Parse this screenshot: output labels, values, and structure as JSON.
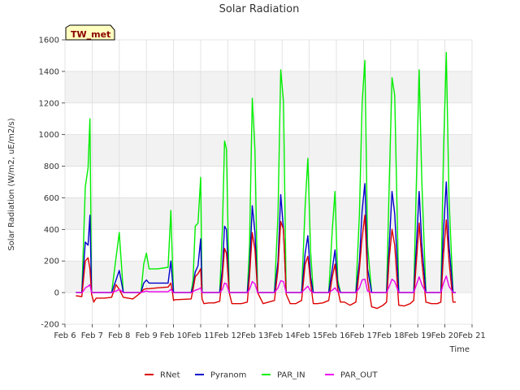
{
  "chart_data": {
    "type": "line",
    "title": "Solar Radiation",
    "xlabel": "Time",
    "ylabel": "Solar Radiation (W/m2, uE/m2/s)",
    "badge": "TW_met",
    "xlim": [
      6,
      21
    ],
    "ylim": [
      -200,
      1600
    ],
    "grid": true,
    "legend_position": "bottom",
    "x_ticks": [
      {
        "value": 6,
        "label": "Feb 6"
      },
      {
        "value": 7,
        "label": "Feb 7"
      },
      {
        "value": 8,
        "label": "Feb 8"
      },
      {
        "value": 9,
        "label": "Feb 9"
      },
      {
        "value": 10,
        "label": "Feb 10"
      },
      {
        "value": 11,
        "label": "Feb 11"
      },
      {
        "value": 12,
        "label": "Feb 12"
      },
      {
        "value": 13,
        "label": "Feb 13"
      },
      {
        "value": 14,
        "label": "Feb 14"
      },
      {
        "value": 15,
        "label": "Feb 15"
      },
      {
        "value": 16,
        "label": "Feb 16"
      },
      {
        "value": 17,
        "label": "Feb 17"
      },
      {
        "value": 18,
        "label": "Feb 18"
      },
      {
        "value": 19,
        "label": "Feb 19"
      },
      {
        "value": 20,
        "label": "Feb 20"
      },
      {
        "value": 21,
        "label": "Feb 21"
      }
    ],
    "y_ticks": [
      -200,
      0,
      200,
      400,
      600,
      800,
      1000,
      1200,
      1400,
      1600
    ],
    "x_range_of_data": [
      6.4,
      20.4
    ],
    "series": [
      {
        "name": "RNet",
        "color": "#dd0000",
        "x": [
          6.4,
          6.62,
          6.68,
          6.75,
          6.85,
          6.92,
          6.98,
          7.06,
          7.15,
          7.45,
          7.72,
          7.88,
          8.0,
          8.15,
          8.5,
          8.8,
          8.9,
          9.0,
          9.1,
          9.4,
          9.8,
          9.9,
          9.95,
          10.0,
          10.05,
          10.65,
          10.72,
          10.8,
          10.9,
          11.0,
          11.05,
          11.12,
          11.3,
          11.5,
          11.7,
          11.8,
          11.88,
          11.95,
          12.05,
          12.15,
          12.3,
          12.5,
          12.72,
          12.8,
          12.9,
          13.0,
          13.1,
          13.3,
          13.5,
          13.72,
          13.85,
          13.95,
          14.05,
          14.15,
          14.3,
          14.5,
          14.72,
          14.85,
          14.95,
          15.05,
          15.15,
          15.3,
          15.5,
          15.72,
          15.85,
          15.95,
          16.05,
          16.15,
          16.3,
          16.5,
          16.72,
          16.85,
          16.95,
          17.05,
          17.15,
          17.3,
          17.5,
          17.72,
          17.85,
          17.95,
          18.05,
          18.15,
          18.3,
          18.5,
          18.72,
          18.85,
          18.95,
          19.05,
          19.15,
          19.3,
          19.5,
          19.72,
          19.85,
          19.95,
          20.05,
          20.15,
          20.3,
          20.4
        ],
        "y": [
          -20,
          -25,
          80,
          200,
          220,
          150,
          -10,
          -60,
          -35,
          -35,
          -30,
          50,
          20,
          -30,
          -40,
          0,
          20,
          25,
          25,
          30,
          35,
          60,
          15,
          -50,
          -45,
          -40,
          20,
          100,
          120,
          150,
          -40,
          -70,
          -65,
          -65,
          -55,
          100,
          280,
          250,
          0,
          -70,
          -70,
          -70,
          -60,
          100,
          380,
          270,
          0,
          -70,
          -60,
          -50,
          150,
          450,
          400,
          -10,
          -70,
          -70,
          -50,
          180,
          230,
          60,
          -70,
          -70,
          -65,
          -50,
          100,
          180,
          20,
          -60,
          -60,
          -80,
          -60,
          150,
          350,
          490,
          80,
          -90,
          -100,
          -80,
          -60,
          220,
          400,
          300,
          -80,
          -85,
          -70,
          -50,
          200,
          440,
          200,
          -60,
          -70,
          -70,
          -60,
          250,
          460,
          200,
          -60,
          -60
        ]
      },
      {
        "name": "Pyranom",
        "color": "#0000cc",
        "x": [
          6.4,
          6.62,
          6.68,
          6.75,
          6.85,
          6.92,
          6.98,
          7.06,
          7.15,
          7.45,
          7.72,
          7.88,
          8.0,
          8.15,
          8.5,
          8.8,
          8.9,
          9.0,
          9.1,
          9.4,
          9.8,
          9.9,
          9.95,
          10.0,
          10.05,
          10.65,
          10.72,
          10.8,
          10.9,
          11.0,
          11.05,
          11.12,
          11.3,
          11.5,
          11.7,
          11.8,
          11.88,
          11.95,
          12.05,
          12.15,
          12.3,
          12.5,
          12.72,
          12.8,
          12.9,
          13.0,
          13.1,
          13.3,
          13.5,
          13.72,
          13.85,
          13.95,
          14.05,
          14.15,
          14.3,
          14.5,
          14.72,
          14.85,
          14.95,
          15.05,
          15.15,
          15.3,
          15.5,
          15.72,
          15.85,
          15.95,
          16.05,
          16.15,
          16.3,
          16.5,
          16.72,
          16.85,
          16.95,
          17.05,
          17.15,
          17.3,
          17.5,
          17.72,
          17.85,
          17.95,
          18.05,
          18.15,
          18.3,
          18.5,
          18.72,
          18.85,
          18.95,
          19.05,
          19.15,
          19.3,
          19.5,
          19.72,
          19.85,
          19.95,
          20.05,
          20.15,
          20.3,
          20.4
        ],
        "y": [
          0,
          0,
          150,
          320,
          300,
          490,
          0,
          0,
          0,
          0,
          0,
          80,
          140,
          0,
          0,
          0,
          60,
          80,
          60,
          60,
          60,
          200,
          100,
          0,
          0,
          0,
          40,
          130,
          170,
          340,
          0,
          0,
          0,
          0,
          0,
          150,
          420,
          400,
          0,
          0,
          0,
          0,
          0,
          150,
          550,
          380,
          0,
          0,
          0,
          0,
          200,
          620,
          400,
          0,
          0,
          0,
          0,
          250,
          360,
          100,
          0,
          0,
          0,
          0,
          150,
          270,
          50,
          0,
          0,
          0,
          0,
          200,
          520,
          690,
          150,
          0,
          0,
          0,
          0,
          300,
          640,
          500,
          0,
          0,
          0,
          0,
          300,
          640,
          300,
          0,
          0,
          0,
          0,
          400,
          700,
          300,
          0,
          0
        ]
      },
      {
        "name": "PAR_IN",
        "color": "#00ee00",
        "x": [
          6.4,
          6.62,
          6.68,
          6.75,
          6.85,
          6.92,
          6.98,
          7.06,
          7.15,
          7.45,
          7.72,
          7.88,
          8.0,
          8.15,
          8.5,
          8.8,
          8.9,
          9.0,
          9.1,
          9.4,
          9.8,
          9.9,
          9.95,
          10.0,
          10.05,
          10.65,
          10.72,
          10.8,
          10.9,
          11.0,
          11.05,
          11.12,
          11.3,
          11.5,
          11.7,
          11.8,
          11.88,
          11.95,
          12.05,
          12.15,
          12.3,
          12.5,
          12.72,
          12.8,
          12.9,
          13.0,
          13.1,
          13.3,
          13.5,
          13.72,
          13.85,
          13.95,
          14.05,
          14.15,
          14.3,
          14.5,
          14.72,
          14.85,
          14.95,
          15.05,
          15.15,
          15.3,
          15.5,
          15.72,
          15.85,
          15.95,
          16.05,
          16.15,
          16.3,
          16.5,
          16.72,
          16.85,
          16.95,
          17.05,
          17.15,
          17.3,
          17.5,
          17.72,
          17.85,
          17.95,
          18.05,
          18.15,
          18.3,
          18.5,
          18.72,
          18.85,
          18.95,
          19.05,
          19.15,
          19.3,
          19.5,
          19.72,
          19.85,
          19.95,
          20.05,
          20.15,
          20.3,
          20.4
        ],
        "y": [
          0,
          0,
          300,
          670,
          790,
          1100,
          0,
          0,
          0,
          0,
          0,
          220,
          380,
          0,
          0,
          0,
          180,
          250,
          150,
          150,
          160,
          520,
          250,
          0,
          0,
          0,
          80,
          420,
          440,
          730,
          0,
          0,
          0,
          0,
          0,
          400,
          960,
          910,
          0,
          0,
          0,
          0,
          0,
          300,
          1230,
          900,
          0,
          0,
          0,
          0,
          500,
          1410,
          1210,
          0,
          0,
          0,
          0,
          550,
          850,
          260,
          0,
          0,
          0,
          0,
          400,
          640,
          80,
          0,
          0,
          0,
          0,
          500,
          1200,
          1470,
          300,
          0,
          0,
          0,
          0,
          700,
          1360,
          1250,
          0,
          0,
          0,
          0,
          700,
          1410,
          700,
          0,
          0,
          0,
          0,
          900,
          1520,
          600,
          0,
          0
        ]
      },
      {
        "name": "PAR_OUT",
        "color": "#ee00ee",
        "x": [
          6.4,
          6.62,
          6.68,
          6.75,
          6.85,
          6.92,
          6.98,
          7.06,
          7.15,
          7.45,
          7.72,
          7.88,
          8.0,
          8.15,
          8.5,
          8.8,
          8.9,
          9.0,
          9.1,
          9.4,
          9.8,
          9.9,
          9.95,
          10.0,
          10.05,
          10.65,
          10.72,
          10.8,
          10.9,
          11.0,
          11.05,
          11.12,
          11.3,
          11.5,
          11.7,
          11.8,
          11.88,
          11.95,
          12.05,
          12.15,
          12.3,
          12.5,
          12.72,
          12.8,
          12.9,
          13.0,
          13.1,
          13.3,
          13.5,
          13.72,
          13.85,
          13.95,
          14.05,
          14.15,
          14.3,
          14.5,
          14.72,
          14.85,
          14.95,
          15.05,
          15.15,
          15.3,
          15.5,
          15.72,
          15.85,
          15.95,
          16.05,
          16.15,
          16.3,
          16.5,
          16.72,
          16.85,
          16.95,
          17.05,
          17.15,
          17.3,
          17.5,
          17.72,
          17.85,
          17.95,
          18.05,
          18.15,
          18.3,
          18.5,
          18.72,
          18.85,
          18.95,
          19.05,
          19.15,
          19.3,
          19.5,
          19.72,
          19.85,
          19.95,
          20.05,
          20.15,
          20.3,
          20.4
        ],
        "y": [
          0,
          0,
          10,
          30,
          40,
          50,
          0,
          0,
          0,
          0,
          0,
          10,
          20,
          0,
          0,
          0,
          5,
          10,
          5,
          5,
          5,
          20,
          10,
          0,
          0,
          0,
          5,
          15,
          20,
          30,
          0,
          0,
          0,
          0,
          0,
          20,
          60,
          55,
          0,
          0,
          0,
          0,
          0,
          20,
          70,
          55,
          0,
          0,
          0,
          0,
          30,
          75,
          70,
          0,
          0,
          0,
          0,
          25,
          40,
          10,
          0,
          0,
          0,
          0,
          15,
          30,
          5,
          0,
          0,
          0,
          0,
          30,
          80,
          85,
          10,
          0,
          0,
          0,
          0,
          40,
          85,
          70,
          0,
          0,
          0,
          0,
          50,
          100,
          50,
          0,
          0,
          0,
          0,
          60,
          105,
          40,
          0,
          0
        ]
      }
    ]
  }
}
